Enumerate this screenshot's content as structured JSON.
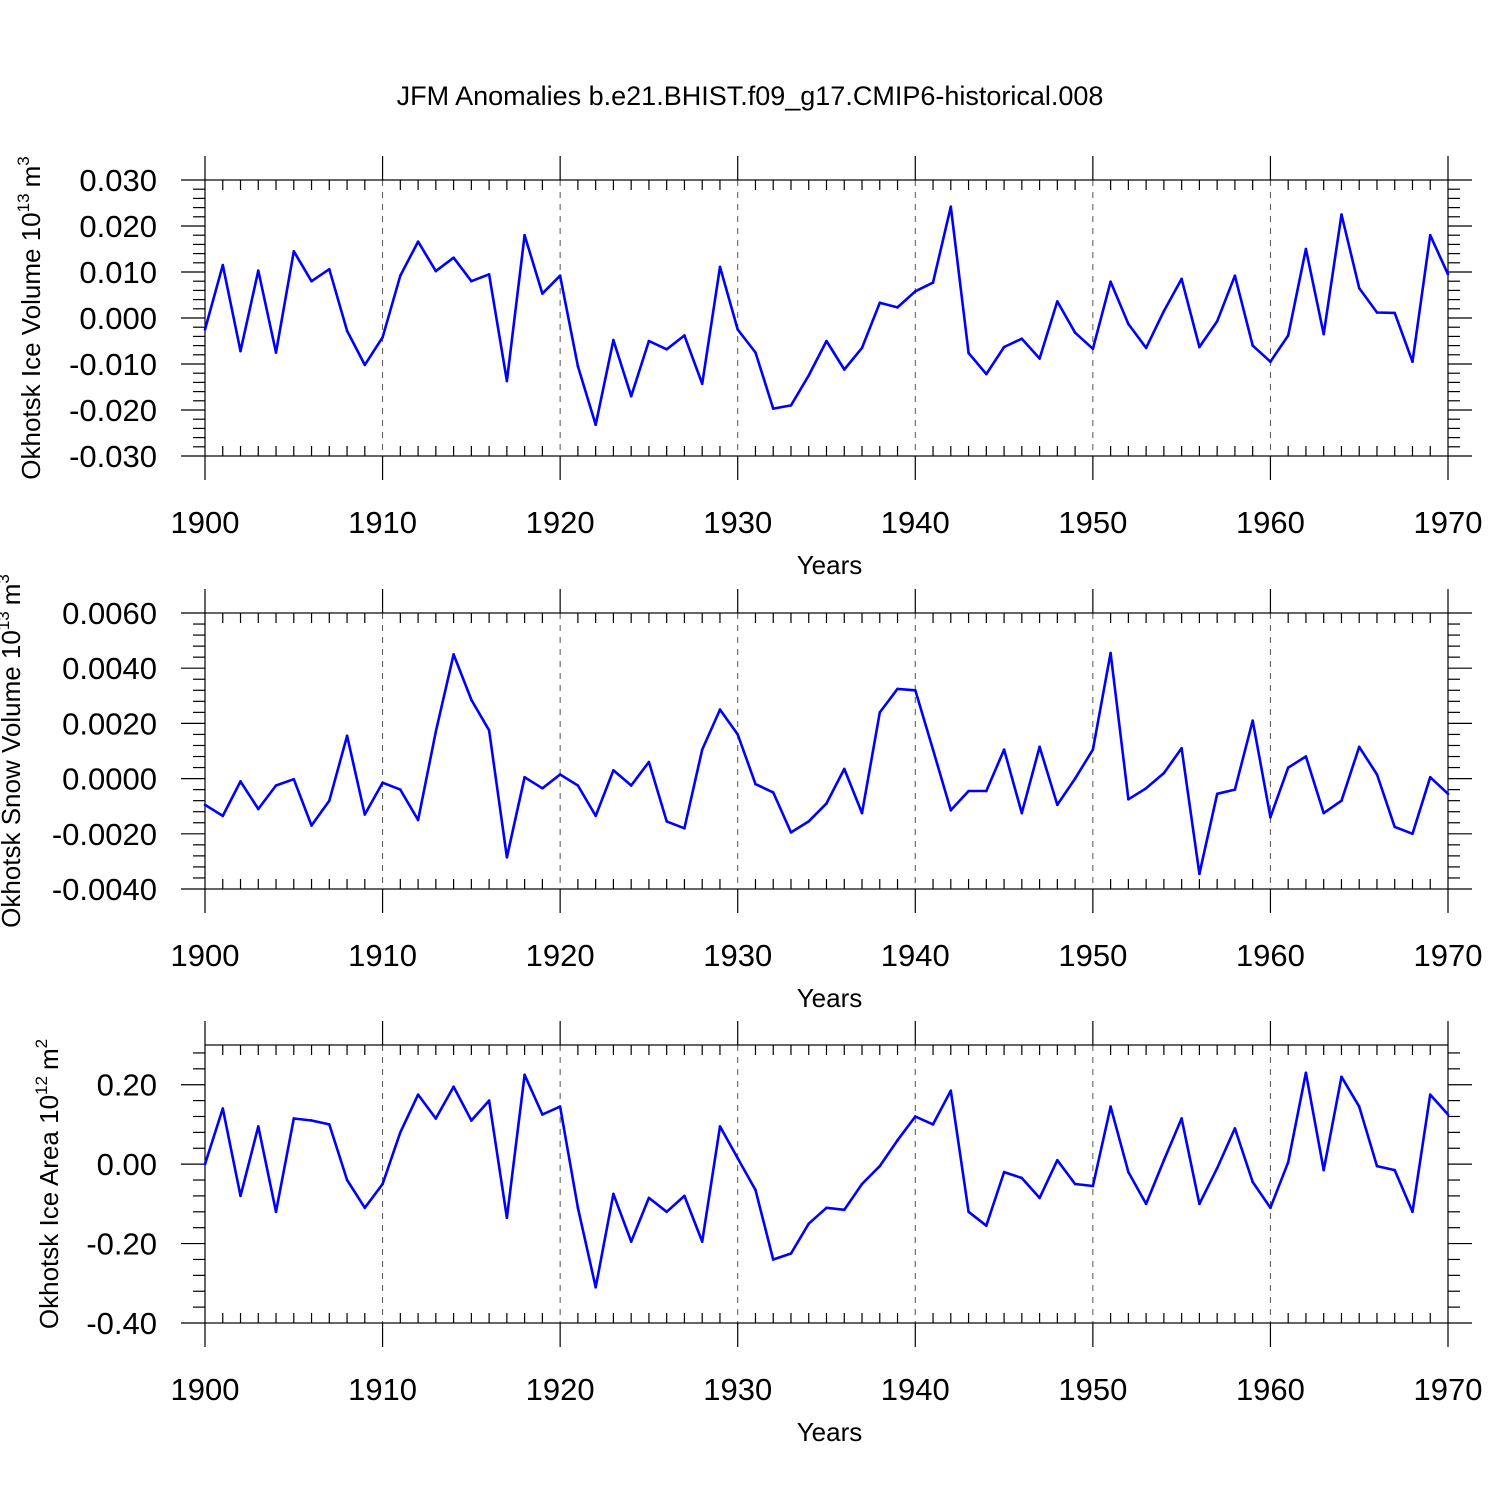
{
  "title": "JFM Anomalies b.e21.BHIST.f09_g17.CMIP6-historical.008",
  "colors": {
    "series": "#0000ff",
    "axes": "#000000",
    "grid": "#555555"
  },
  "chart_data": [
    {
      "type": "line",
      "xlabel": "Years",
      "ylabel": "Okhotsk Ice Volume 10",
      "ylabel_exponent": "13",
      "ylabel_unit": "m",
      "ylabel_unit_exponent": "3",
      "xlim": [
        1900,
        1970
      ],
      "ylim": [
        -0.03,
        0.03
      ],
      "x_ticks": [
        1900,
        1910,
        1920,
        1930,
        1940,
        1950,
        1960,
        1970
      ],
      "x_tick_labels": [
        "1900",
        "1910",
        "1920",
        "1930",
        "1940",
        "1950",
        "1960",
        "1970"
      ],
      "y_ticks": [
        -0.03,
        -0.02,
        -0.01,
        0.0,
        0.01,
        0.02,
        0.03
      ],
      "y_tick_labels": [
        "-0.030",
        "-0.020",
        "-0.010",
        "0.000",
        "0.010",
        "0.020",
        "0.030"
      ],
      "grid": "vertical dashed at major x ticks",
      "x_start": 1900,
      "values": [
        -0.0025,
        0.0115,
        -0.0072,
        0.0103,
        -0.0075,
        0.0145,
        0.008,
        0.0106,
        -0.0028,
        -0.0102,
        -0.0042,
        0.0092,
        0.0166,
        0.0102,
        0.0131,
        0.008,
        0.0095,
        -0.0137,
        0.018,
        0.0053,
        0.0092,
        -0.0105,
        -0.0232,
        -0.0048,
        -0.017,
        -0.005,
        -0.0068,
        -0.0038,
        -0.0143,
        0.0111,
        -0.0025,
        -0.0075,
        -0.0197,
        -0.019,
        -0.0125,
        -0.005,
        -0.0112,
        -0.0065,
        0.0033,
        0.0023,
        0.0058,
        0.0077,
        0.0242,
        -0.0076,
        -0.0122,
        -0.0063,
        -0.0045,
        -0.0088,
        0.0036,
        -0.0032,
        -0.0067,
        0.0079,
        -0.0013,
        -0.0065,
        0.0015,
        0.0085,
        -0.0063,
        -0.0007,
        0.0092,
        -0.006,
        -0.0095,
        -0.0038,
        0.015,
        -0.0035,
        0.0225,
        0.0065,
        0.0012,
        0.0011,
        -0.0095,
        0.018,
        0.0095
      ]
    },
    {
      "type": "line",
      "xlabel": "Years",
      "ylabel": "Okhotsk Snow Volume 10",
      "ylabel_exponent": "13",
      "ylabel_unit": "m",
      "ylabel_unit_exponent": "3",
      "xlim": [
        1900,
        1970
      ],
      "ylim": [
        -0.004,
        0.006
      ],
      "x_ticks": [
        1900,
        1910,
        1920,
        1930,
        1940,
        1950,
        1960,
        1970
      ],
      "x_tick_labels": [
        "1900",
        "1910",
        "1920",
        "1930",
        "1940",
        "1950",
        "1960",
        "1970"
      ],
      "y_ticks": [
        -0.004,
        -0.002,
        0.0,
        0.002,
        0.004,
        0.006
      ],
      "y_tick_labels": [
        "-0.0040",
        "-0.0020",
        "0.0000",
        "0.0020",
        "0.0040",
        "0.0060"
      ],
      "grid": "vertical dashed at major x ticks",
      "x_start": 1900,
      "values": [
        -0.00095,
        -0.00135,
        -0.0001,
        -0.0011,
        -0.00025,
        -2e-05,
        -0.0017,
        -0.0008,
        0.00155,
        -0.0013,
        -0.00015,
        -0.0004,
        -0.0015,
        0.0017,
        0.0045,
        0.00285,
        0.00175,
        -0.00285,
        5e-05,
        -0.00035,
        0.00015,
        -0.00025,
        -0.00135,
        0.0003,
        -0.00025,
        0.0006,
        -0.00155,
        -0.0018,
        0.00105,
        0.0025,
        0.0016,
        -0.0002,
        -0.0005,
        -0.00195,
        -0.00155,
        -0.0009,
        0.00035,
        -0.00125,
        0.0024,
        0.00325,
        0.0032,
        0.00105,
        -0.00115,
        -0.00045,
        -0.00045,
        0.00105,
        -0.00125,
        0.00115,
        -0.00095,
        0.0,
        0.00105,
        0.00455,
        -0.00075,
        -0.00035,
        0.0002,
        0.0011,
        -0.00345,
        -0.00055,
        -0.0004,
        0.0021,
        -0.0014,
        0.0004,
        0.0008,
        -0.00125,
        -0.0008,
        0.00115,
        0.00015,
        -0.00175,
        -0.002,
        5e-05,
        -0.00055
      ]
    },
    {
      "type": "line",
      "xlabel": "Years",
      "ylabel": "Okhotsk Ice Area 10",
      "ylabel_exponent": "12",
      "ylabel_unit": "m",
      "ylabel_unit_exponent": "2",
      "xlim": [
        1900,
        1970
      ],
      "ylim": [
        -0.4,
        0.3
      ],
      "x_ticks": [
        1900,
        1910,
        1920,
        1930,
        1940,
        1950,
        1960,
        1970
      ],
      "x_tick_labels": [
        "1900",
        "1910",
        "1920",
        "1930",
        "1940",
        "1950",
        "1960",
        "1970"
      ],
      "y_ticks": [
        -0.4,
        -0.2,
        0.0,
        0.2
      ],
      "y_tick_labels": [
        "-0.40",
        "-0.20",
        "0.00",
        "0.20"
      ],
      "grid": "vertical dashed at major x ticks",
      "x_start": 1900,
      "values": [
        0.0,
        0.14,
        -0.08,
        0.095,
        -0.12,
        0.115,
        0.11,
        0.1,
        -0.04,
        -0.11,
        -0.05,
        0.08,
        0.175,
        0.115,
        0.195,
        0.11,
        0.16,
        -0.135,
        0.225,
        0.125,
        0.145,
        -0.11,
        -0.31,
        -0.075,
        -0.195,
        -0.085,
        -0.12,
        -0.08,
        -0.195,
        0.095,
        0.015,
        -0.065,
        -0.24,
        -0.225,
        -0.15,
        -0.11,
        -0.115,
        -0.05,
        -0.005,
        0.06,
        0.12,
        0.1,
        0.185,
        -0.12,
        -0.155,
        -0.02,
        -0.035,
        -0.085,
        0.01,
        -0.05,
        -0.055,
        0.145,
        -0.02,
        -0.1,
        0.01,
        0.115,
        -0.1,
        -0.01,
        0.09,
        -0.045,
        -0.11,
        0.005,
        0.23,
        -0.015,
        0.22,
        0.145,
        -0.005,
        -0.015,
        -0.12,
        0.175,
        0.125
      ]
    }
  ]
}
